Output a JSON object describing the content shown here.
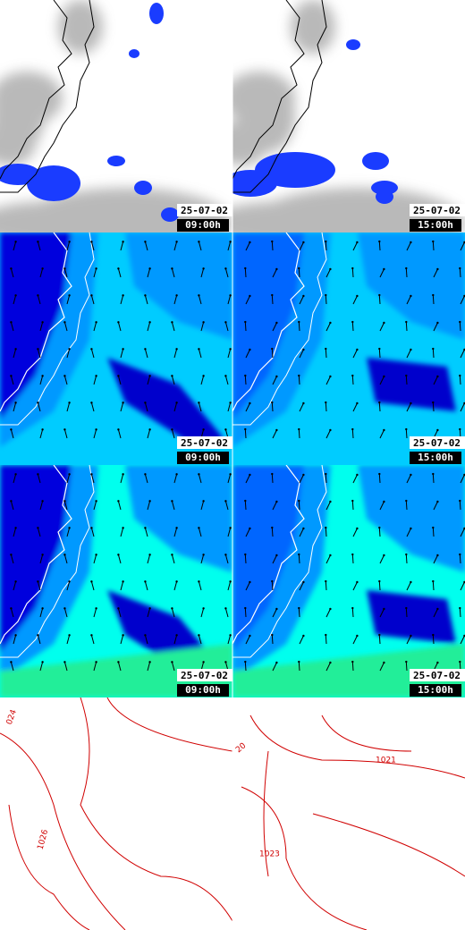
{
  "stamps": [
    {
      "date": "25-07-02",
      "time": "09:00h"
    },
    {
      "date": "25-07-02",
      "time": "15:00h"
    },
    {
      "date": "25-07-02",
      "time": "09:00h"
    },
    {
      "date": "25-07-02",
      "time": "15:00h"
    },
    {
      "date": "25-07-02",
      "time": "09:00h"
    },
    {
      "date": "25-07-02",
      "time": "15:00h"
    }
  ],
  "contour_labels": [
    "024",
    "1026",
    "20",
    "1021",
    "1023"
  ]
}
